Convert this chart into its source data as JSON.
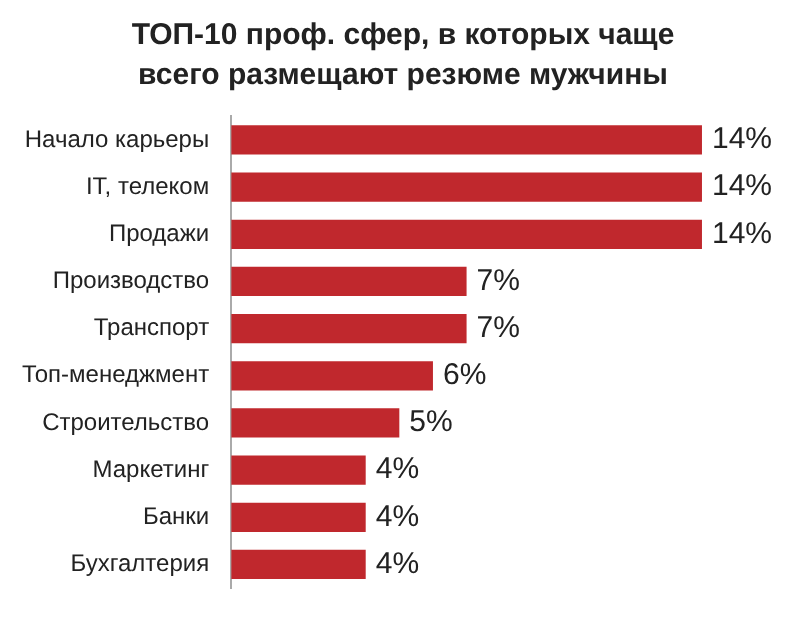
{
  "chart_data": {
    "type": "bar",
    "orientation": "horizontal",
    "title": "ТОП-10 проф. сфер, в которых чаще всего размещают резюме мужчины",
    "categories": [
      "Начало карьеры",
      "IT, телеком",
      "Продажи",
      "Производство",
      "Транспорт",
      "Топ-менеджмент",
      "Строительство",
      "Маркетинг",
      "Банки",
      "Бухгалтерия"
    ],
    "values": [
      14,
      14,
      14,
      7,
      7,
      6,
      5,
      4,
      4,
      4
    ],
    "value_labels": [
      "14%",
      "14%",
      "14%",
      "7%",
      "7%",
      "6%",
      "5%",
      "4%",
      "4%",
      "4%"
    ],
    "color": "#c0282d",
    "relative": false,
    "grid": false,
    "legend": false
  }
}
